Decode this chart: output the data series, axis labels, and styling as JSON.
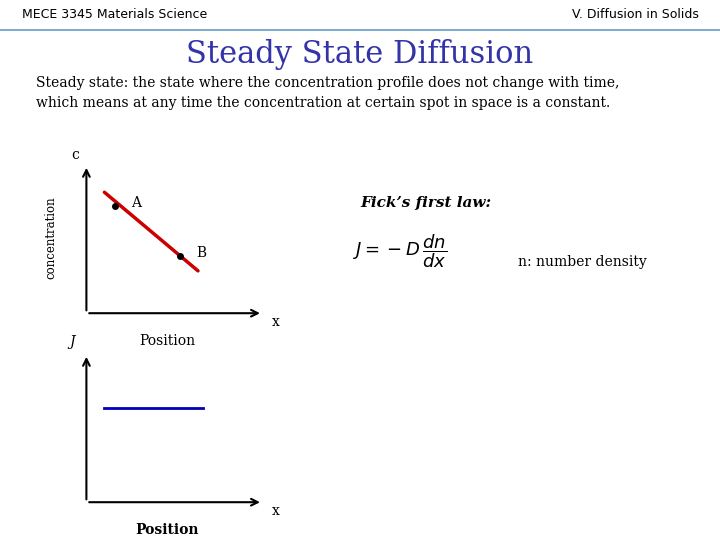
{
  "title": "Steady State Diffusion",
  "title_color": "#3333AA",
  "title_fontsize": 22,
  "header_left": "MECE 3345 Materials Science",
  "header_right": "V. Diffusion in Solids",
  "header_fontsize": 9,
  "header_color": "#000000",
  "header_line_color": "#6699CC",
  "body_text": "Steady state: the state where the concentration profile does not change with time,\nwhich means at any time the concentration at certain spot in space is a constant.",
  "body_fontsize": 10,
  "ficks_law_text": "Fick’s first law:",
  "ficks_law_fontsize": 11,
  "equation_fontsize": 13,
  "n_density_text": "n: number density",
  "n_density_fontsize": 10,
  "point_A_label": "A",
  "point_B_label": "B",
  "conc_ylabel": "concentration",
  "conc_c_label": "c",
  "conc_x_label": "x",
  "conc_xlabel": "Position",
  "J_ylabel": "J",
  "J_xlabel": "Position",
  "J_x_label": "x",
  "line_color_red": "#CC0000",
  "line_color_blue": "#0000BB",
  "background_color": "#FFFFFF",
  "axes_linewidth": 1.5
}
